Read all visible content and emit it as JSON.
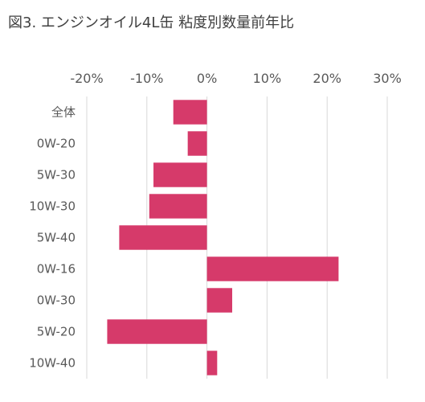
{
  "chart_data": {
    "type": "bar",
    "orientation": "horizontal",
    "title": "図3. エンジンオイル4L缶 粘度別数量前年比",
    "categories": [
      "全体",
      "0W-20",
      "5W-30",
      "10W-30",
      "5W-40",
      "0W-16",
      "0W-30",
      "5W-20",
      "10W-40"
    ],
    "series": [
      {
        "values": [
          -5.6,
          -3.2,
          -8.9,
          -9.6,
          -14.6,
          21.9,
          4.2,
          -16.6,
          1.7
        ]
      }
    ],
    "x_ticks": [
      "-20%",
      "-10%",
      "0%",
      "10%",
      "20%",
      "30%"
    ],
    "xlim": [
      -0.2,
      0.3
    ],
    "grid": true,
    "bar_color": "#d63a6a",
    "grid_color": "#d9d9d9"
  }
}
